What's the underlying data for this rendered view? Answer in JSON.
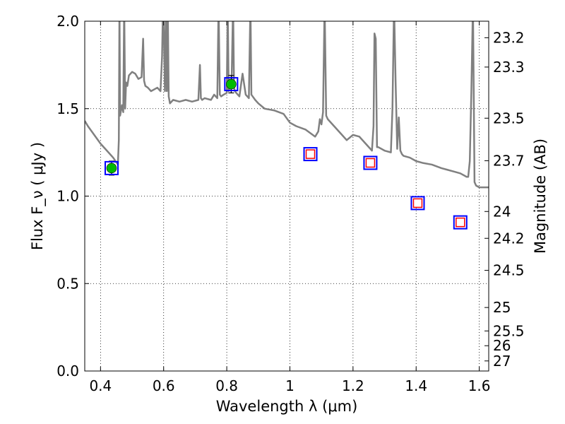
{
  "chart_data": {
    "type": "scatter",
    "xlabel": "Wavelength  λ (μm)",
    "ylabel": "Flux  F_ν  ( μJy )",
    "y2label": "Magnitude (AB)",
    "xlim": [
      0.35,
      1.63
    ],
    "ylim": [
      0.0,
      2.0
    ],
    "grid": true,
    "x_ticks": [
      0.4,
      0.6,
      0.8,
      1.0,
      1.2,
      1.4,
      1.6
    ],
    "x_tick_labels": [
      "0.4",
      "0.6",
      "0.8",
      "1",
      "1.2",
      "1.4",
      "1.6"
    ],
    "y_ticks": [
      0.0,
      0.5,
      1.0,
      1.5,
      2.0
    ],
    "y_tick_labels": [
      "0.0",
      "0.5",
      "1.0",
      "1.5",
      "2.0"
    ],
    "y2_ticks": [
      23.2,
      23.3,
      23.5,
      23.7,
      24,
      24.2,
      24.5,
      25,
      25.5,
      26,
      27
    ],
    "y2_tick_labels": [
      "23.2",
      "23.3",
      "23.5",
      "23.7",
      "24",
      "24.2",
      "24.5",
      "25",
      "25.5",
      "26",
      "27"
    ],
    "series": [
      {
        "type": "scatter",
        "marker": "filled-circle",
        "color": "#00bb00",
        "x": [
          0.435,
          0.814
        ],
        "y": [
          1.16,
          1.64
        ],
        "yerr": [
          0.04,
          0.05
        ]
      },
      {
        "type": "scatter",
        "marker": "open-square",
        "color": "#ff0000",
        "x": [
          1.065,
          1.255,
          1.405,
          1.54
        ],
        "y": [
          1.24,
          1.19,
          0.96,
          0.85
        ]
      },
      {
        "type": "scatter",
        "marker": "outline-square",
        "color": "#0000ff",
        "x": [
          0.435,
          0.814,
          1.065,
          1.255,
          1.405,
          1.54
        ],
        "y": [
          1.16,
          1.64,
          1.24,
          1.19,
          0.96,
          0.85
        ]
      },
      {
        "type": "line",
        "color": "#808080",
        "x": [
          0.35,
          0.36,
          0.38,
          0.4,
          0.42,
          0.44,
          0.455,
          0.458,
          0.46,
          0.462,
          0.468,
          0.472,
          0.475,
          0.478,
          0.481,
          0.485,
          0.49,
          0.495,
          0.5,
          0.51,
          0.52,
          0.53,
          0.535,
          0.538,
          0.542,
          0.55,
          0.56,
          0.58,
          0.59,
          0.595,
          0.598,
          0.601,
          0.604,
          0.607,
          0.61,
          0.613,
          0.616,
          0.62,
          0.63,
          0.65,
          0.67,
          0.69,
          0.71,
          0.715,
          0.718,
          0.722,
          0.73,
          0.75,
          0.76,
          0.77,
          0.774,
          0.778,
          0.782,
          0.79,
          0.8,
          0.803,
          0.806,
          0.81,
          0.815,
          0.82,
          0.823,
          0.826,
          0.83,
          0.84,
          0.85,
          0.86,
          0.87,
          0.875,
          0.878,
          0.882,
          0.89,
          0.9,
          0.92,
          0.95,
          0.98,
          1.0,
          1.02,
          1.05,
          1.08,
          1.09,
          1.095,
          1.1,
          1.105,
          1.11,
          1.115,
          1.12,
          1.14,
          1.16,
          1.18,
          1.2,
          1.22,
          1.24,
          1.26,
          1.265,
          1.268,
          1.272,
          1.276,
          1.28,
          1.3,
          1.32,
          1.325,
          1.33,
          1.335,
          1.34,
          1.345,
          1.35,
          1.355,
          1.36,
          1.38,
          1.4,
          1.42,
          1.45,
          1.48,
          1.5,
          1.52,
          1.54,
          1.56,
          1.565,
          1.57,
          1.575,
          1.58,
          1.585,
          1.59,
          1.6,
          1.63
        ],
        "y": [
          1.43,
          1.4,
          1.35,
          1.3,
          1.26,
          1.22,
          1.18,
          1.32,
          2.1,
          1.46,
          1.52,
          1.48,
          2.1,
          1.5,
          1.65,
          1.63,
          1.69,
          1.7,
          1.71,
          1.7,
          1.67,
          1.68,
          1.9,
          1.66,
          1.63,
          1.62,
          1.6,
          1.62,
          1.6,
          1.8,
          2.1,
          1.9,
          1.6,
          2.1,
          1.6,
          2.1,
          1.57,
          1.53,
          1.55,
          1.54,
          1.55,
          1.54,
          1.55,
          1.75,
          1.56,
          1.55,
          1.56,
          1.55,
          1.58,
          1.56,
          2.1,
          1.58,
          1.57,
          1.58,
          1.59,
          2.1,
          1.6,
          1.63,
          1.62,
          2.1,
          1.62,
          1.6,
          1.59,
          1.57,
          1.7,
          1.58,
          1.56,
          2.1,
          1.58,
          1.57,
          1.55,
          1.53,
          1.5,
          1.49,
          1.47,
          1.42,
          1.4,
          1.38,
          1.34,
          1.37,
          1.44,
          1.41,
          1.48,
          2.1,
          1.46,
          1.44,
          1.4,
          1.36,
          1.32,
          1.35,
          1.34,
          1.3,
          1.26,
          1.4,
          1.93,
          1.9,
          1.28,
          1.28,
          1.26,
          1.25,
          1.5,
          2.1,
          1.65,
          1.27,
          1.45,
          1.26,
          1.24,
          1.23,
          1.22,
          1.2,
          1.19,
          1.18,
          1.16,
          1.15,
          1.14,
          1.13,
          1.11,
          1.11,
          1.2,
          1.6,
          2.1,
          1.08,
          1.06,
          1.05,
          1.05
        ]
      }
    ]
  }
}
